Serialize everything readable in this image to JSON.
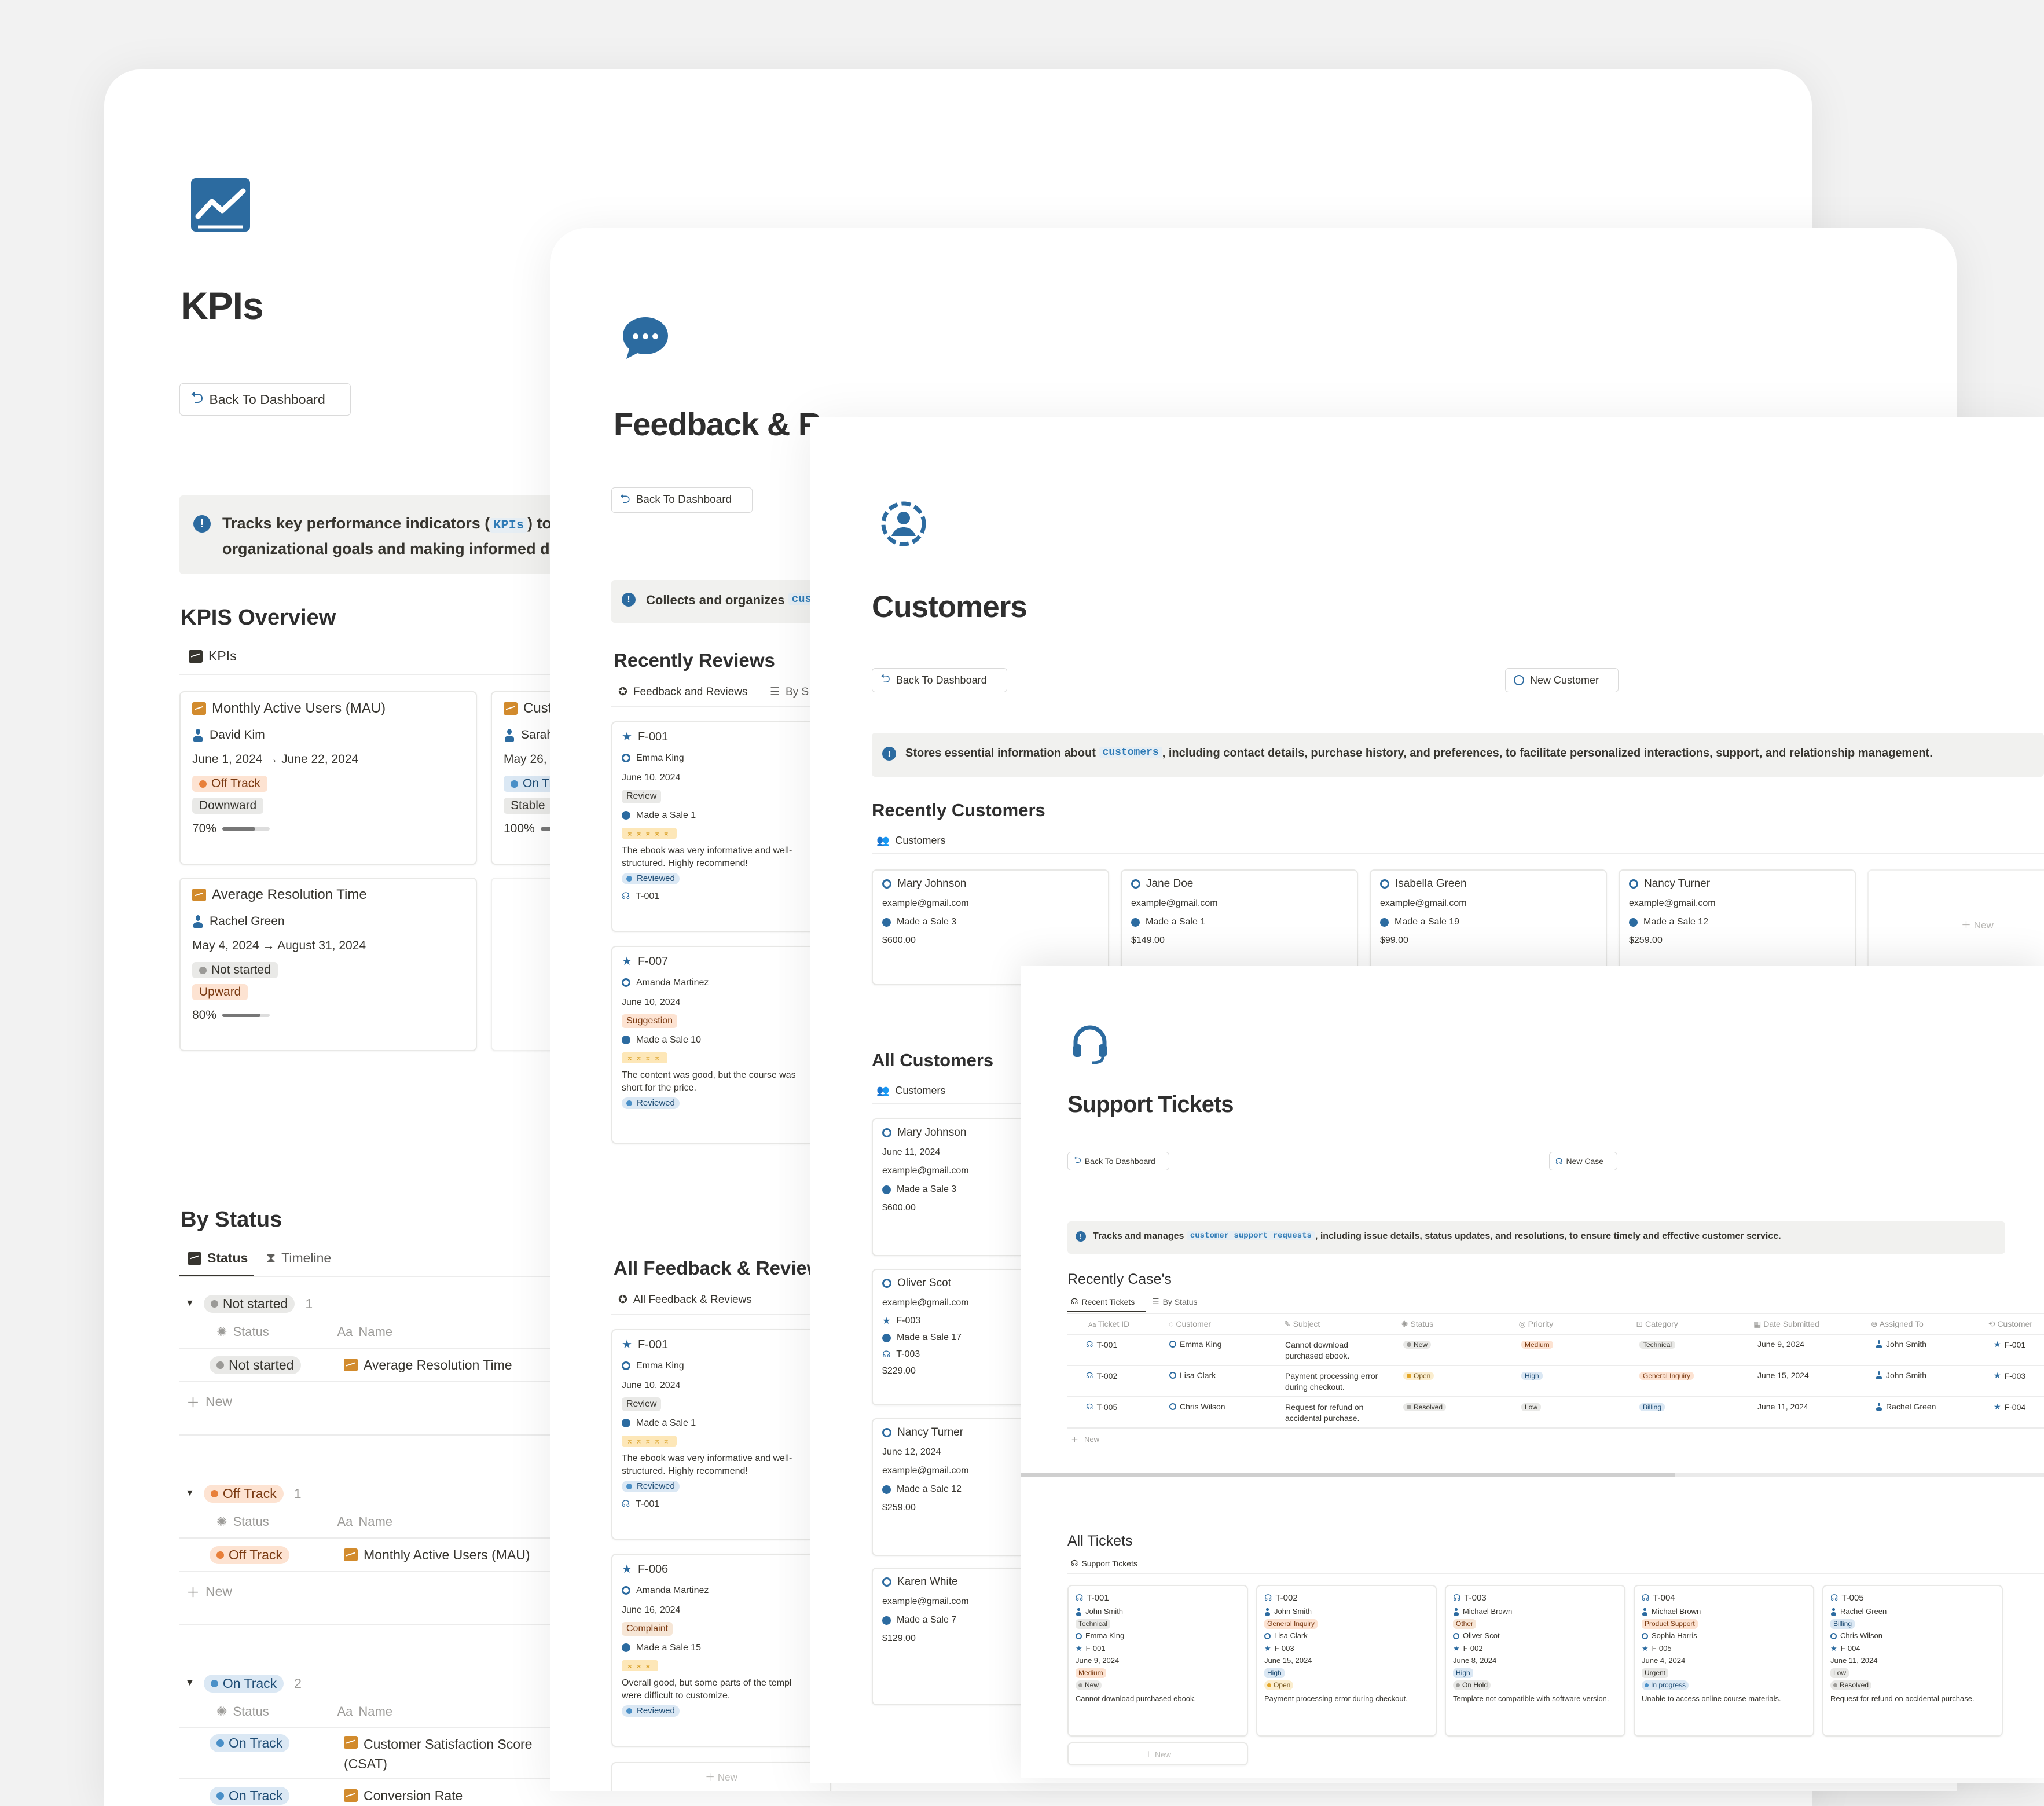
{
  "kpis": {
    "title": "KPIs",
    "back": "Back To Dashboard",
    "callout_a": "Tracks key performance indicators (",
    "callout_code": "KPIs",
    "callout_b": ") to",
    "callout_line2": "organizational goals and making informed de",
    "overview_heading": "KPIS Overview",
    "overview_tab": "KPIs",
    "cards": [
      {
        "name": "Monthly Active Users (MAU)",
        "person": "David Kim",
        "dates": "June 1, 2024 → June 22, 2024",
        "status": "Off Track",
        "trend": "Downward",
        "pct": "70%",
        "progress": 0.7
      },
      {
        "name": "Cust",
        "person": "Sarah",
        "dates": "May 26, 2",
        "status": "On Tr",
        "trend": "Stable",
        "pct": "100%",
        "progress": 1.0
      },
      {
        "name": "Average Resolution Time",
        "person": "Rachel Green",
        "dates": "May 4, 2024 → August 31, 2024",
        "status": "Not started",
        "trend": "Upward",
        "pct": "80%",
        "progress": 0.8
      }
    ],
    "status_heading": "By Status",
    "status_tab": "Status",
    "timeline_tab": "Timeline",
    "col_status": "Status",
    "col_name": "Name",
    "new_label": "New",
    "groups": [
      {
        "label": "Not started",
        "count": "1",
        "rows": [
          {
            "status": "Not started",
            "name": "Average Resolution Time"
          }
        ]
      },
      {
        "label": "Off Track",
        "count": "1",
        "rows": [
          {
            "status": "Off Track",
            "name": "Monthly Active Users (MAU)"
          }
        ]
      },
      {
        "label": "On Track",
        "count": "2",
        "rows": [
          {
            "status": "On Track",
            "name": "Customer Satisfaction Score",
            "name2": "(CSAT)"
          },
          {
            "status": "On Track",
            "name": "Conversion Rate"
          }
        ]
      }
    ]
  },
  "feedback": {
    "title": "Feedback & Re",
    "back": "Back To Dashboard",
    "callout": "Collects and organizes",
    "callout_code": "cus",
    "recent_heading": "Recently Reviews",
    "tab1": "Feedback and Reviews",
    "tab2": "By S",
    "all_heading": "All Feedback & Reviews",
    "all_tab": "All Feedback & Reviews",
    "recent_cards": [
      {
        "id": "F-001",
        "person": "Emma King",
        "date": "June 10, 2024",
        "type": "Review",
        "sale": "Made a Sale 1",
        "stars": "⌅⌅⌅⌅⌅",
        "text1": "The ebook was very informative and well-",
        "text2": "structured. Highly recommend!",
        "reviewed": "Reviewed",
        "ticket": "T-001"
      },
      {
        "id": "F-007",
        "person": "Amanda Martinez",
        "date": "June 10, 2024",
        "type": "Suggestion",
        "sale": "Made a Sale 10",
        "stars": "⌅⌅⌅⌅",
        "text1": "The content was good, but the course was",
        "text2": "short for the price.",
        "reviewed": "Reviewed",
        "ticket": ""
      }
    ],
    "all_cards": [
      {
        "id": "F-001",
        "person": "Emma King",
        "date": "June 10, 2024",
        "type": "Review",
        "sale": "Made a Sale 1",
        "stars": "⌅⌅⌅⌅⌅",
        "text1": "The ebook was very informative and well-",
        "text2": "structured. Highly recommend!",
        "reviewed": "Reviewed",
        "ticket": "T-001"
      },
      {
        "id": "F-006",
        "person": "Amanda Martinez",
        "date": "June 16, 2024",
        "type": "Complaint",
        "sale": "Made a Sale 15",
        "stars": "⌅⌅⌅",
        "text1": "Overall good, but some parts of the templ",
        "text2": "were difficult to customize.",
        "reviewed": "Reviewed",
        "ticket": ""
      }
    ],
    "new_label": "New"
  },
  "customers": {
    "title": "Customers",
    "back": "Back To Dashboard",
    "new_customer": "New Customer",
    "callout_a": "Stores essential information about",
    "callout_code": "customers",
    "callout_b": ", including contact details, purchase history, and preferences, to facilitate personalized interactions, support, and relationship management.",
    "recent_heading": "Recently Customers",
    "tab": "Customers",
    "recent_cards": [
      {
        "name": "Mary Johnson",
        "email": "example@gmail.com",
        "sale": "Made a Sale 3",
        "amount": "$600.00"
      },
      {
        "name": "Jane Doe",
        "email": "example@gmail.com",
        "sale": "Made a Sale 1",
        "amount": "$149.00"
      },
      {
        "name": "Isabella Green",
        "email": "example@gmail.com",
        "sale": "Made a Sale 19",
        "amount": "$99.00"
      },
      {
        "name": "Nancy Turner",
        "email": "example@gmail.com",
        "sale": "Made a Sale 12",
        "amount": "$259.00"
      }
    ],
    "new_label": "New",
    "all_heading": "All Customers",
    "all_tab": "Customers",
    "all_cards": [
      {
        "name": "Mary Johnson",
        "date": "June 11, 2024",
        "email": "example@gmail.com",
        "fb": "",
        "sale": "Made a Sale 3",
        "ticket": "",
        "amount": "$600.00"
      },
      {
        "name": "Oliver Scot",
        "date": "",
        "email": "example@gmail.com",
        "fb": "F-003",
        "sale": "Made a Sale 17",
        "ticket": "T-003",
        "amount": "$229.00"
      },
      {
        "name": "Nancy Turner",
        "date": "June 12, 2024",
        "email": "example@gmail.com",
        "fb": "",
        "sale": "Made a Sale 12",
        "ticket": "",
        "amount": "$259.00"
      },
      {
        "name": "Karen White",
        "date": "",
        "email": "example@gmail.com",
        "fb": "",
        "sale": "Made a Sale 7",
        "ticket": "",
        "amount": "$129.00"
      }
    ]
  },
  "support": {
    "title": "Support Tickets",
    "back": "Back To Dashboard",
    "new_case": "New Case",
    "callout_a": "Tracks and manages",
    "callout_code": "customer support requests",
    "callout_b": ", including issue details, status updates, and resolutions, to ensure timely and effective customer service.",
    "recent_heading": "Recently Case's",
    "tab1": "Recent Tickets",
    "tab2": "By Status",
    "columns": [
      "Ticket ID",
      "Customer",
      "Subject",
      "Status",
      "Priority",
      "Category",
      "Date Submitted",
      "Assigned To",
      "Customer"
    ],
    "rows": [
      {
        "id": "T-001",
        "customer": "Emma King",
        "subject1": "Cannot download",
        "subject2": "purchased ebook.",
        "status": "New",
        "priority": "Medium",
        "category": "Technical",
        "date": "June 9, 2024",
        "assigned": "John Smith",
        "fb": "F-001"
      },
      {
        "id": "T-002",
        "customer": "Lisa Clark",
        "subject1": "Payment processing error",
        "subject2": "during checkout.",
        "status": "Open",
        "priority": "High",
        "category": "General Inquiry",
        "date": "June 15, 2024",
        "assigned": "John Smith",
        "fb": "F-003"
      },
      {
        "id": "T-005",
        "customer": "Chris Wilson",
        "subject1": "Request for refund on",
        "subject2": "accidental purchase.",
        "status": "Resolved",
        "priority": "Low",
        "category": "Billing",
        "date": "June 11, 2024",
        "assigned": "Rachel Green",
        "fb": "F-004"
      }
    ],
    "new_label": "New",
    "all_heading": "All Tickets",
    "all_tab": "Support Tickets",
    "cards": [
      {
        "id": "T-001",
        "agent": "John Smith",
        "category": "Technical",
        "customer": "Emma King",
        "fb": "F-001",
        "date": "June 9, 2024",
        "priority": "Medium",
        "status": "New",
        "desc": "Cannot download purchased ebook."
      },
      {
        "id": "T-002",
        "agent": "John Smith",
        "category": "General Inquiry",
        "customer": "Lisa Clark",
        "fb": "F-003",
        "date": "June 15, 2024",
        "priority": "High",
        "status": "Open",
        "desc": "Payment processing error during checkout."
      },
      {
        "id": "T-003",
        "agent": "Michael Brown",
        "category": "Other",
        "customer": "Oliver Scot",
        "fb": "F-002",
        "date": "June 8, 2024",
        "priority": "High",
        "status": "On Hold",
        "desc": "Template not compatible with software version."
      },
      {
        "id": "T-004",
        "agent": "Michael Brown",
        "category": "Product Support",
        "customer": "Sophia Harris",
        "fb": "F-005",
        "date": "June 4, 2024",
        "priority": "Urgent",
        "status": "In progress",
        "desc": "Unable to access online course materials."
      },
      {
        "id": "T-005",
        "agent": "Rachel Green",
        "category": "Billing",
        "customer": "Chris Wilson",
        "fb": "F-004",
        "date": "June 11, 2024",
        "priority": "Low",
        "status": "Resolved",
        "desc": "Request for refund on accidental purchase."
      }
    ]
  },
  "colors": {
    "accent": "#2c6ba0",
    "kpi_icon": "#d28b2d",
    "bg": "#f2f2f2"
  },
  "icons": [
    "chart-line-icon",
    "chat-bubble-icon",
    "user-circle-icon",
    "headset-icon",
    "back-arrow-icon",
    "exclamation-icon",
    "star-icon",
    "person-icon"
  ]
}
